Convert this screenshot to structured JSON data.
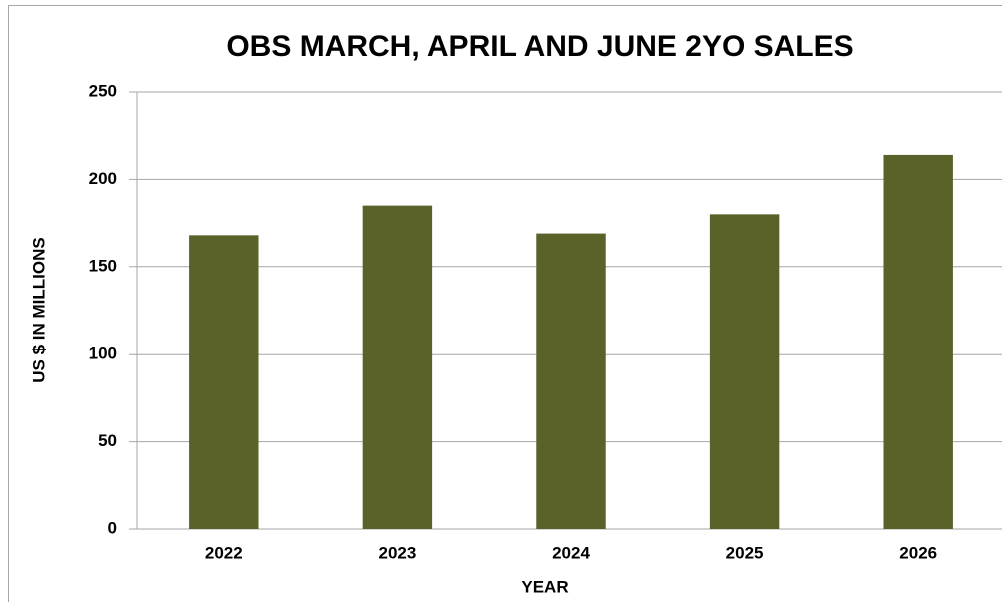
{
  "chart_data": {
    "type": "bar",
    "title": "OBS MARCH, APRIL AND JUNE 2YO SALES",
    "x_label": "YEAR",
    "y_label": "US $ IN MILLIONS",
    "categories": [
      "2022",
      "2023",
      "2024",
      "2025",
      "2026"
    ],
    "values": [
      168,
      185,
      169,
      180,
      214
    ],
    "color": "#5a6229",
    "ylim": [
      0,
      250
    ],
    "yticks": [
      0,
      50,
      100,
      150,
      200,
      250
    ],
    "grid": true
  }
}
